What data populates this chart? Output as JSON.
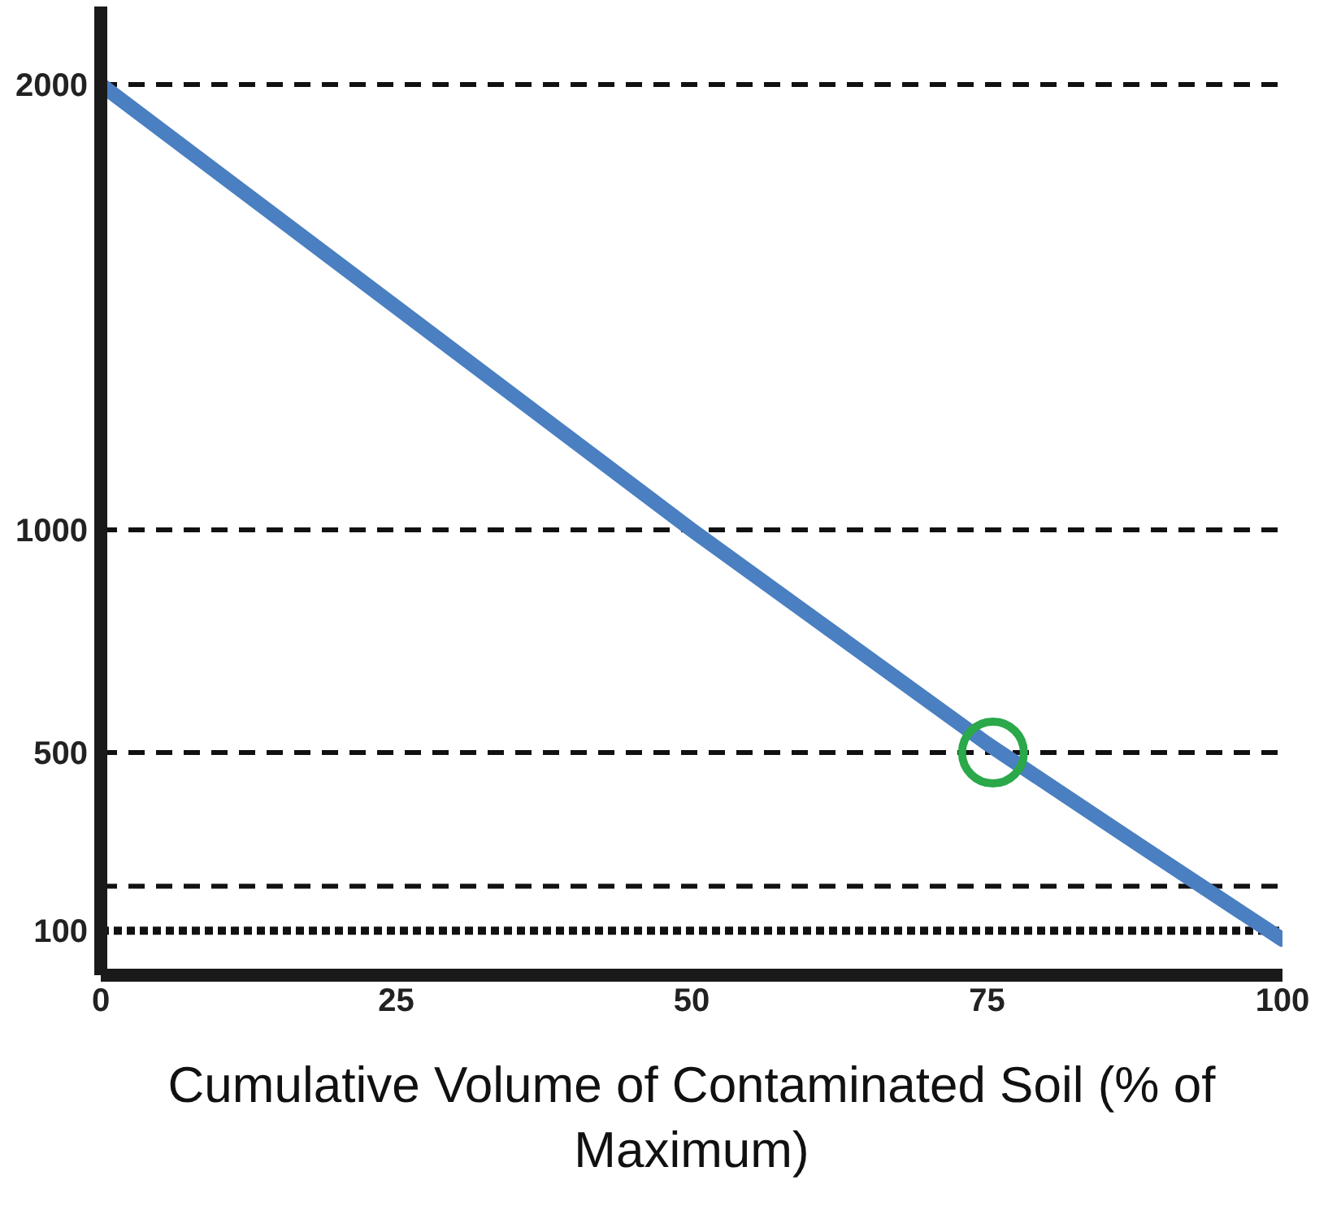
{
  "chart_data": {
    "type": "line",
    "xlabel": "Cumulative Volume of Contaminated Soil (% of Maximum)",
    "xlim": [
      0,
      100
    ],
    "xticks": [
      0,
      25,
      50,
      75,
      100
    ],
    "ylim": [
      0,
      2175
    ],
    "yticks": [
      2000,
      1000,
      500,
      100
    ],
    "grid": false,
    "series": [
      {
        "color": "#4a7fc1",
        "x": [
          0,
          50,
          75,
          88,
          100
        ],
        "values": [
          2000,
          1000,
          520,
          290,
          80
        ],
        "line_style": "solid",
        "marker": "none"
      },
      {
        "type": "scatter",
        "color": "#2aa84a",
        "x": [
          75.5
        ],
        "values": [
          500
        ],
        "marker": "circle"
      }
    ],
    "ref_lines": [
      {
        "axis": "y",
        "value": 2000,
        "line_style": "dashed",
        "color": "#111111"
      },
      {
        "axis": "y",
        "value": 1000,
        "line_style": "dashed",
        "color": "#111111"
      },
      {
        "axis": "y",
        "value": 500,
        "line_style": "dashed",
        "color": "#111111"
      },
      {
        "axis": "y",
        "value": 200,
        "line_style": "dashed",
        "color": "#111111"
      },
      {
        "axis": "y",
        "value": 100,
        "line_style": "dotted",
        "color": "#111111"
      }
    ]
  }
}
